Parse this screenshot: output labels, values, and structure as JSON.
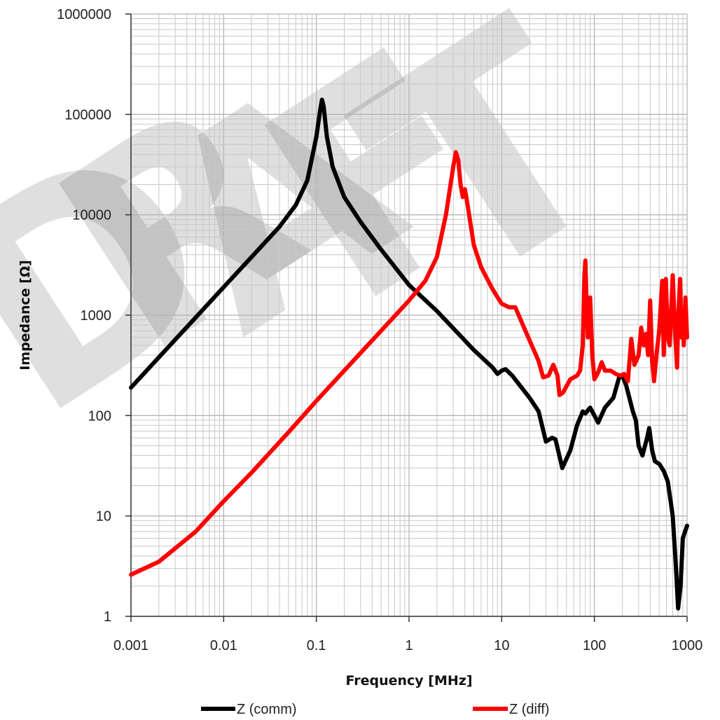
{
  "chart_data": {
    "type": "line",
    "title": "",
    "xlabel": "Frequency [MHz]",
    "ylabel": "Impedance [Ω]",
    "x_scale": "log",
    "y_scale": "log",
    "xlim": [
      0.001,
      1000
    ],
    "ylim": [
      1,
      1000000
    ],
    "x_ticks": [
      0.001,
      0.01,
      0.1,
      1,
      10,
      100,
      1000
    ],
    "x_tick_labels": [
      "0.001",
      "0.01",
      "0.1",
      "1",
      "10",
      "100",
      "1000"
    ],
    "y_ticks": [
      1,
      10,
      100,
      1000,
      10000,
      100000,
      1000000
    ],
    "y_tick_labels": [
      "1",
      "10",
      "100",
      "1000",
      "10000",
      "100000",
      "1000000"
    ],
    "grid": true,
    "legend_position": "bottom",
    "watermark": "DRAFT",
    "series": [
      {
        "name": "Z (comm)",
        "color": "#000000",
        "points": [
          [
            0.001,
            190
          ],
          [
            0.002,
            380
          ],
          [
            0.005,
            950
          ],
          [
            0.01,
            1900
          ],
          [
            0.02,
            3800
          ],
          [
            0.04,
            7600
          ],
          [
            0.06,
            12500
          ],
          [
            0.08,
            22000
          ],
          [
            0.1,
            60000
          ],
          [
            0.11,
            110000
          ],
          [
            0.115,
            140000
          ],
          [
            0.12,
            120000
          ],
          [
            0.13,
            60000
          ],
          [
            0.15,
            30000
          ],
          [
            0.2,
            15000
          ],
          [
            0.3,
            8500
          ],
          [
            0.5,
            4500
          ],
          [
            1,
            2000
          ],
          [
            2,
            1100
          ],
          [
            5,
            450
          ],
          [
            8,
            300
          ],
          [
            9,
            260
          ],
          [
            10,
            280
          ],
          [
            11,
            290
          ],
          [
            13,
            250
          ],
          [
            20,
            150
          ],
          [
            25,
            110
          ],
          [
            30,
            55
          ],
          [
            35,
            60
          ],
          [
            38,
            58
          ],
          [
            45,
            30
          ],
          [
            55,
            45
          ],
          [
            65,
            80
          ],
          [
            75,
            110
          ],
          [
            80,
            105
          ],
          [
            90,
            120
          ],
          [
            100,
            100
          ],
          [
            110,
            85
          ],
          [
            130,
            120
          ],
          [
            160,
            150
          ],
          [
            185,
            240
          ],
          [
            200,
            250
          ],
          [
            220,
            200
          ],
          [
            260,
            110
          ],
          [
            280,
            90
          ],
          [
            300,
            50
          ],
          [
            330,
            40
          ],
          [
            370,
            60
          ],
          [
            390,
            75
          ],
          [
            420,
            45
          ],
          [
            450,
            35
          ],
          [
            500,
            33
          ],
          [
            560,
            28
          ],
          [
            620,
            22
          ],
          [
            700,
            10
          ],
          [
            760,
            3
          ],
          [
            800,
            1.2
          ],
          [
            850,
            2
          ],
          [
            900,
            6
          ],
          [
            1000,
            8
          ]
        ]
      },
      {
        "name": "Z (diff)",
        "color": "#ff0000",
        "points": [
          [
            0.001,
            2.6
          ],
          [
            0.002,
            3.5
          ],
          [
            0.005,
            7
          ],
          [
            0.01,
            14
          ],
          [
            0.02,
            27
          ],
          [
            0.05,
            68
          ],
          [
            0.1,
            140
          ],
          [
            0.2,
            280
          ],
          [
            0.5,
            700
          ],
          [
            1,
            1400
          ],
          [
            1.5,
            2200
          ],
          [
            2,
            3800
          ],
          [
            2.5,
            10000
          ],
          [
            3,
            30000
          ],
          [
            3.2,
            42000
          ],
          [
            3.4,
            35000
          ],
          [
            3.6,
            20000
          ],
          [
            3.8,
            15000
          ],
          [
            4,
            18000
          ],
          [
            4.2,
            14000
          ],
          [
            5,
            5000
          ],
          [
            6,
            3000
          ],
          [
            8,
            1800
          ],
          [
            10,
            1300
          ],
          [
            12,
            1200
          ],
          [
            14,
            1200
          ],
          [
            18,
            700
          ],
          [
            25,
            350
          ],
          [
            28,
            240
          ],
          [
            32,
            250
          ],
          [
            36,
            320
          ],
          [
            40,
            250
          ],
          [
            42,
            160
          ],
          [
            46,
            170
          ],
          [
            55,
            230
          ],
          [
            65,
            250
          ],
          [
            70,
            280
          ],
          [
            75,
            500
          ],
          [
            78,
            2500
          ],
          [
            80,
            3500
          ],
          [
            82,
            1500
          ],
          [
            85,
            600
          ],
          [
            90,
            1500
          ],
          [
            95,
            400
          ],
          [
            100,
            230
          ],
          [
            110,
            270
          ],
          [
            120,
            340
          ],
          [
            130,
            280
          ],
          [
            150,
            280
          ],
          [
            170,
            260
          ],
          [
            190,
            250
          ],
          [
            210,
            260
          ],
          [
            230,
            220
          ],
          [
            250,
            580
          ],
          [
            270,
            320
          ],
          [
            300,
            400
          ],
          [
            320,
            750
          ],
          [
            340,
            500
          ],
          [
            360,
            650
          ],
          [
            380,
            400
          ],
          [
            400,
            1400
          ],
          [
            420,
            350
          ],
          [
            440,
            220
          ],
          [
            470,
            420
          ],
          [
            500,
            700
          ],
          [
            540,
            2200
          ],
          [
            560,
            400
          ],
          [
            590,
            2300
          ],
          [
            620,
            600
          ],
          [
            650,
            500
          ],
          [
            700,
            2500
          ],
          [
            740,
            700
          ],
          [
            780,
            300
          ],
          [
            800,
            900
          ],
          [
            840,
            2300
          ],
          [
            870,
            600
          ],
          [
            900,
            1100
          ],
          [
            920,
            500
          ],
          [
            960,
            1500
          ],
          [
            1000,
            600
          ]
        ]
      }
    ]
  }
}
